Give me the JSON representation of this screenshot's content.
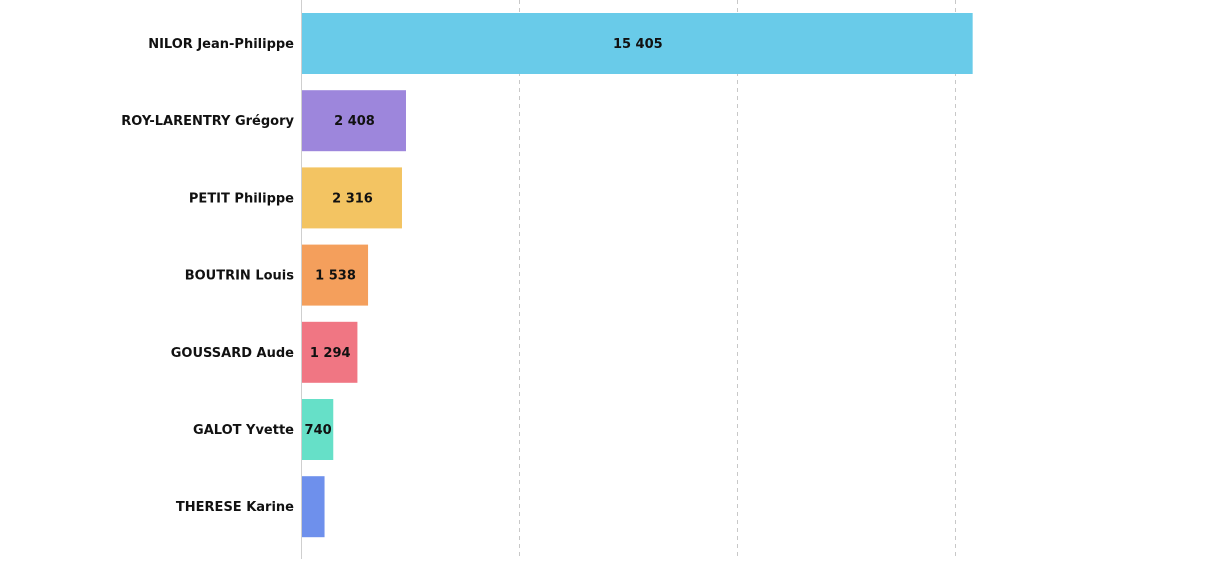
{
  "chart_data": {
    "type": "bar",
    "orientation": "horizontal",
    "categories": [
      "NILOR Jean-Philippe",
      "ROY-LARENTRY Grégory",
      "PETIT Philippe",
      "BOUTRIN Louis",
      "GOUSSARD Aude",
      "GALOT Yvette",
      "THERESE Karine"
    ],
    "values": [
      15405,
      2408,
      2316,
      1538,
      1294,
      740,
      540
    ],
    "value_labels": [
      "15 405",
      "2 408",
      "2 316",
      "1 538",
      "1 294",
      "740",
      ""
    ],
    "colors": [
      "#69cbe9",
      "#9d86dc",
      "#f3c462",
      "#f49f5c",
      "#f07683",
      "#66e0c8",
      "#6e90ec"
    ],
    "xlim": [
      0,
      20000
    ],
    "x_gridlines": [
      5000,
      10000,
      15000
    ],
    "grid": true,
    "legend": "none",
    "title": "",
    "xlabel": "",
    "ylabel": ""
  }
}
